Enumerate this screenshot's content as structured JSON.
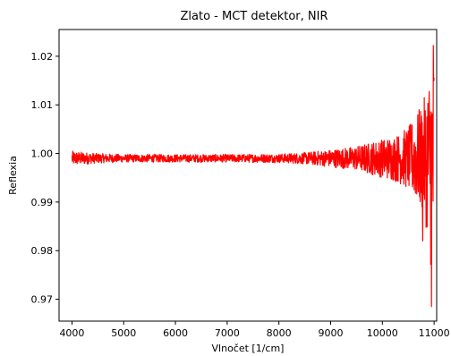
{
  "chart_data": {
    "type": "line",
    "title": "Zlato - MCT detektor, NIR",
    "xlabel": "Vlnočet [1/cm]",
    "ylabel": "Reflexia",
    "xlim": [
      3750,
      11050
    ],
    "ylim": [
      0.9655,
      1.0255
    ],
    "x_ticks": [
      4000,
      5000,
      6000,
      7000,
      8000,
      9000,
      10000,
      11000
    ],
    "x_tick_labels": [
      "4000",
      "5000",
      "6000",
      "7000",
      "8000",
      "9000",
      "10000",
      "11000"
    ],
    "y_ticks": [
      0.97,
      0.98,
      0.99,
      1.0,
      1.01,
      1.02
    ],
    "y_tick_labels": [
      "0.97",
      "0.98",
      "0.99",
      "1.00",
      "1.01",
      "1.02"
    ],
    "grid": false,
    "series": [
      {
        "color": "#ff0000",
        "x_range": [
          4000,
          11000
        ],
        "baseline": 0.999,
        "envelope": {
          "x": [
            4000,
            4500,
            5000,
            6000,
            7000,
            8000,
            8500,
            9000,
            9500,
            10000,
            10300,
            10500,
            10600,
            10800,
            10900,
            10950,
            11000
          ],
          "amplitude": [
            0.0015,
            0.001,
            0.0008,
            0.0008,
            0.0008,
            0.0009,
            0.0012,
            0.0018,
            0.0025,
            0.004,
            0.005,
            0.0065,
            0.008,
            0.012,
            0.017,
            0.025,
            0.03
          ]
        },
        "extremes": [
          {
            "x": 10850,
            "y": 1.0225
          },
          {
            "x": 10850,
            "y": 0.9865
          },
          {
            "x": 10780,
            "y": 0.982
          },
          {
            "x": 10950,
            "y": 0.9685
          }
        ]
      }
    ]
  }
}
